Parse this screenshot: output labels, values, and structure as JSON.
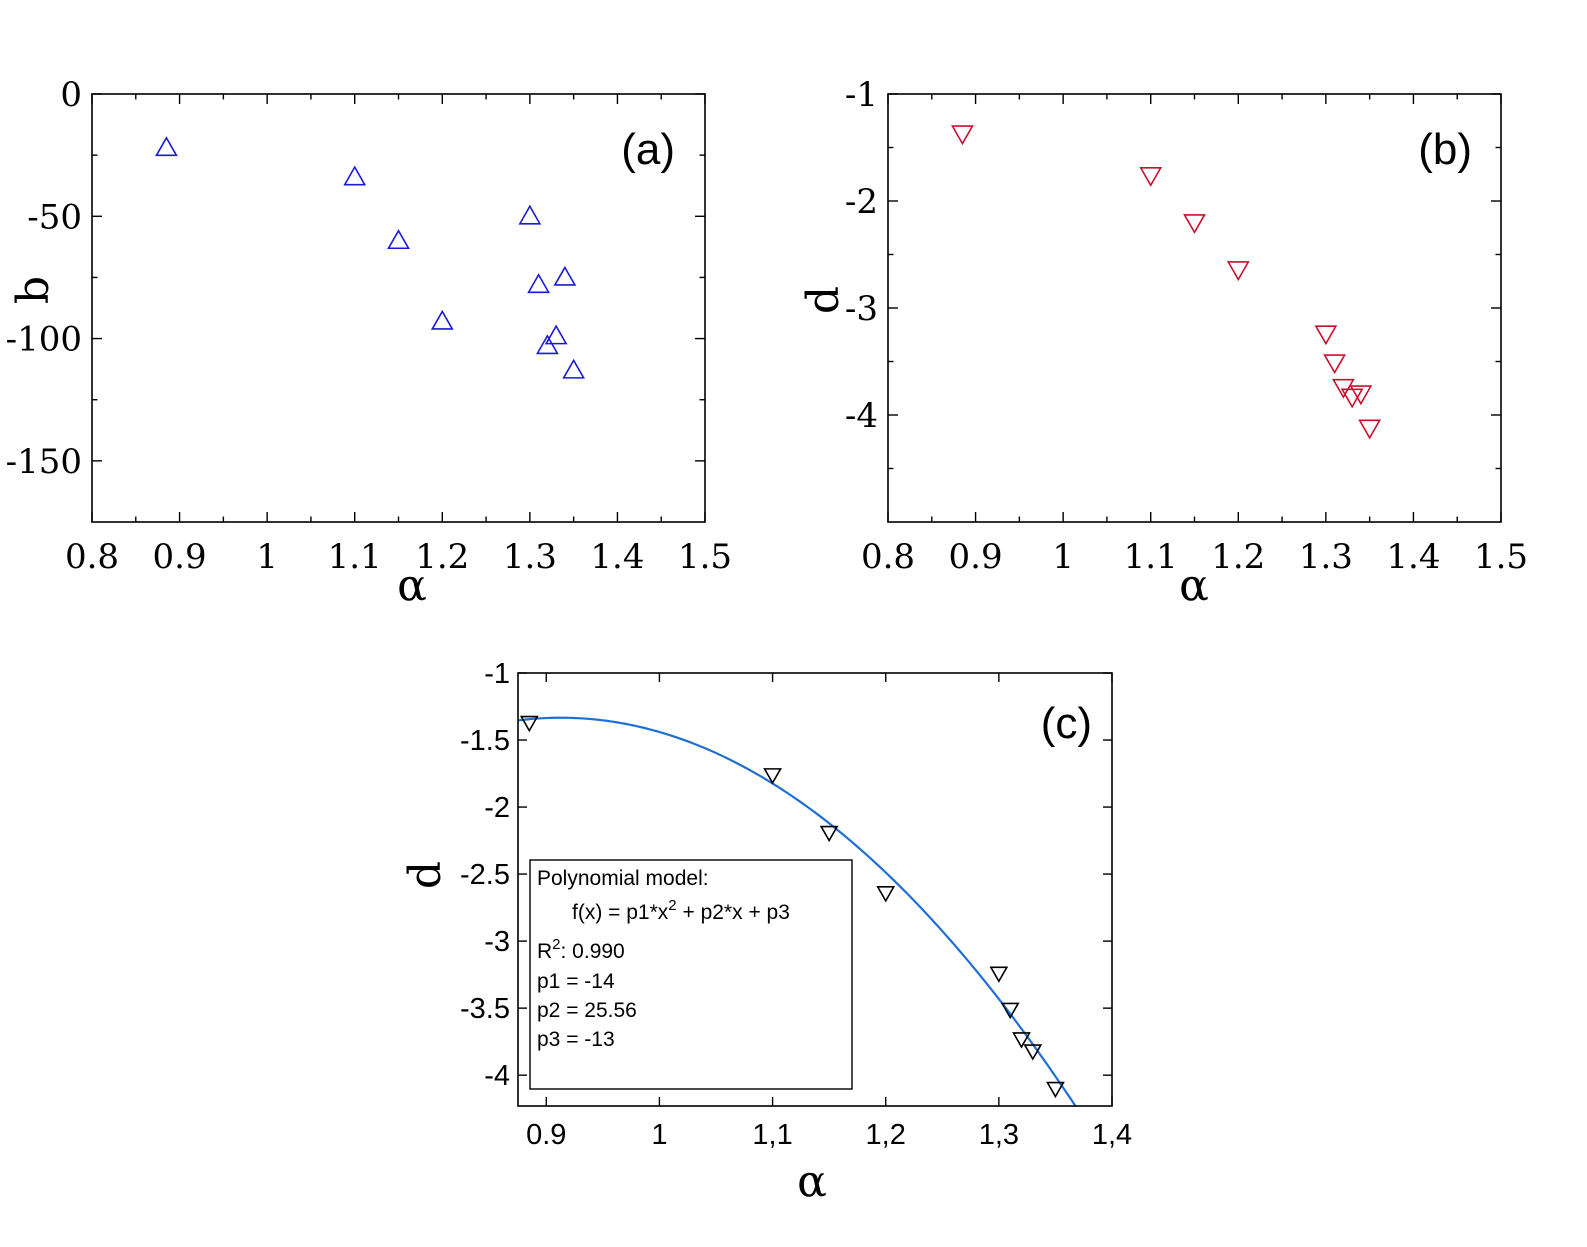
{
  "chart_data": [
    {
      "panel": "(a)",
      "type": "scatter",
      "title": "",
      "xlabel": "α",
      "ylabel": "b",
      "xlim": [
        0.8,
        1.5
      ],
      "ylim": [
        -175,
        0
      ],
      "xticks": [
        0.8,
        0.9,
        1,
        1.1,
        1.2,
        1.3,
        1.4,
        1.5
      ],
      "xtick_labels": [
        "0.8",
        "0.9",
        "1",
        "1.1",
        "1.2",
        "1.3",
        "1.4",
        "1.5"
      ],
      "yticks": [
        0,
        -50,
        -100,
        -150
      ],
      "ytick_labels": [
        "0",
        "-50",
        "-100",
        "-150"
      ],
      "marker": "triangle-up",
      "color": "#1a1ad6",
      "series": [
        {
          "name": "b",
          "x": [
            0.885,
            1.1,
            1.15,
            1.2,
            1.3,
            1.31,
            1.32,
            1.33,
            1.34,
            1.35
          ],
          "y": [
            -22,
            -34,
            -60,
            -93,
            -50,
            -78,
            -103,
            -99,
            -75,
            -113
          ]
        }
      ]
    },
    {
      "panel": "(b)",
      "type": "scatter",
      "title": "",
      "xlabel": "α",
      "ylabel": "d",
      "xlim": [
        0.8,
        1.5
      ],
      "ylim": [
        -5,
        -1
      ],
      "xticks": [
        0.8,
        0.9,
        1,
        1.1,
        1.2,
        1.3,
        1.4,
        1.5
      ],
      "xtick_labels": [
        "0.8",
        "0.9",
        "1",
        "1.1",
        "1.2",
        "1.3",
        "1.4",
        "1.5"
      ],
      "yticks": [
        -1,
        -2,
        -3,
        -4
      ],
      "ytick_labels": [
        "-1",
        "-2",
        "-3",
        "-4"
      ],
      "marker": "triangle-down",
      "color": "#c8102e",
      "series": [
        {
          "name": "d",
          "x": [
            0.885,
            1.1,
            1.15,
            1.2,
            1.3,
            1.31,
            1.32,
            1.33,
            1.34,
            1.35
          ],
          "y": [
            -1.37,
            -1.76,
            -2.2,
            -2.64,
            -3.24,
            -3.51,
            -3.74,
            -3.83,
            -3.8,
            -4.12
          ]
        }
      ]
    },
    {
      "panel": "(c)",
      "type": "scatter",
      "title": "",
      "xlabel": "α",
      "ylabel": "d",
      "xlim": [
        0.875,
        1.4
      ],
      "ylim": [
        -4.23,
        -1
      ],
      "xticks": [
        0.9,
        1,
        1.1,
        1.2,
        1.3,
        1.4
      ],
      "xtick_labels": [
        "0.9",
        "1",
        "1,1",
        "1,2",
        "1,3",
        "1,4"
      ],
      "yticks": [
        -1,
        -1.5,
        -2,
        -2.5,
        -3,
        -3.5,
        -4
      ],
      "ytick_labels": [
        "-1",
        "-1.5",
        "-2",
        "-2.5",
        "-3",
        "-3.5",
        "-4"
      ],
      "marker": "triangle-down",
      "color": "#000000",
      "series": [
        {
          "name": "d",
          "x": [
            0.885,
            1.1,
            1.15,
            1.2,
            1.3,
            1.31,
            1.32,
            1.33,
            1.35
          ],
          "y": [
            -1.37,
            -1.76,
            -2.19,
            -2.64,
            -3.24,
            -3.51,
            -3.73,
            -3.82,
            -4.1
          ]
        }
      ],
      "fit": {
        "name": "Polynomial model",
        "p1": -14.0,
        "p2": 25.56,
        "p3": -13.0,
        "x_range": [
          0.875,
          1.368
        ],
        "color": "#1f6fd6"
      }
    }
  ],
  "panel_labels": {
    "a": "(a)",
    "b": "(b)",
    "c": "(c)"
  },
  "axis_labels": {
    "alpha": "α",
    "b": "b",
    "d": "d"
  },
  "legend_c": {
    "line1": "Polynomial model:",
    "line2": "f(x) = p1*x",
    "line2_sup": "2",
    "line2_rest": " + p2*x + p3",
    "r2_base": "R",
    "r2_sup": "2",
    "r2_rest": ": 0.990",
    "p1": "p1 = -14",
    "p2": "p2 = 25.56",
    "p3": "p3 = -13"
  }
}
